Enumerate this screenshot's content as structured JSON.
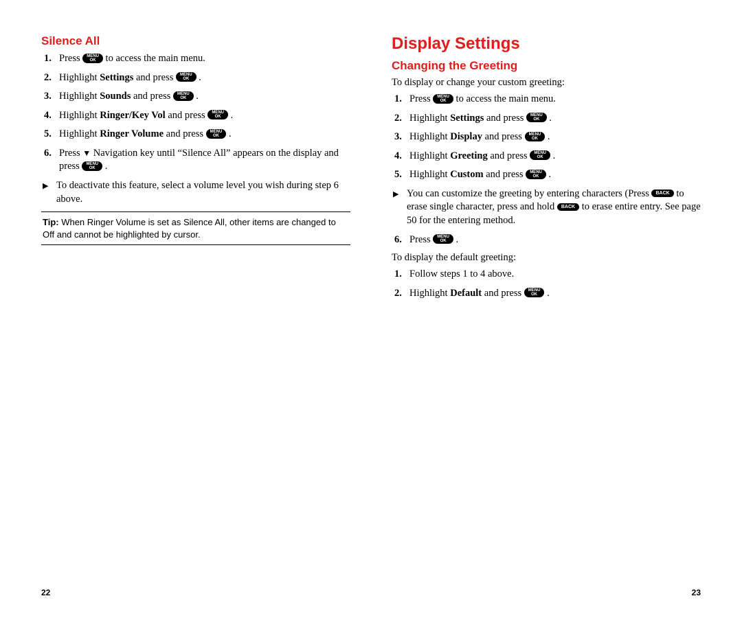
{
  "left": {
    "subsection_title": "Silence All",
    "steps": [
      {
        "pre": "Press ",
        "key": "menu",
        "post": " to access the main menu."
      },
      {
        "pre": "Highlight ",
        "bold": "Settings",
        "mid": " and press ",
        "key": "menu",
        "post": " ."
      },
      {
        "pre": "Highlight ",
        "bold": "Sounds",
        "mid": " and press ",
        "key": "menu",
        "post": " ."
      },
      {
        "pre": "Highlight ",
        "bold": "Ringer/Key Vol",
        "mid": " and press ",
        "key": "menu",
        "post": " ."
      },
      {
        "pre": "Highlight ",
        "bold": "Ringer Volume",
        "mid": " and press ",
        "key": "menu",
        "post": " ."
      },
      {
        "pre": "Press ",
        "nav": "▼",
        "mid": " Navigation key until “Silence All” appears on the display and press ",
        "key": "menu",
        "post": " ."
      }
    ],
    "note": "To deactivate this feature, select a volume level you wish during step 6 above.",
    "tip_label": "Tip:",
    "tip_text": " When Ringer Volume is set as Silence All, other items are changed to Off and cannot be highlighted by cursor.",
    "page_num": "22"
  },
  "right": {
    "section_title": "Display Settings",
    "subsection_title": "Changing the Greeting",
    "intro1": "To display or change your custom greeting:",
    "steps1": [
      {
        "pre": "Press ",
        "key": "menu",
        "post": " to access the main menu."
      },
      {
        "pre": "Highlight ",
        "bold": "Settings",
        "mid": " and press ",
        "key": "menu",
        "post": " ."
      },
      {
        "pre": "Highlight ",
        "bold": "Display",
        "mid": " and press ",
        "key": "menu",
        "post": " ."
      },
      {
        "pre": "Highlight ",
        "bold": "Greeting",
        "mid": " and press ",
        "key": "menu",
        "post": " ."
      },
      {
        "pre": "Highlight ",
        "bold": "Custom",
        "mid": " and press ",
        "key": "menu",
        "post": " ."
      }
    ],
    "note1_pre": "You can customize the greeting by entering characters (Press ",
    "note1_mid1": " to erase single character, press and hold ",
    "note1_mid2": " to erase entire entry. See page 50 for the entering method.",
    "step6_pre": "Press ",
    "step6_post": " .",
    "intro2": "To display the default greeting:",
    "steps2": [
      {
        "text": "Follow steps 1 to 4 above."
      },
      {
        "pre": "Highlight ",
        "bold": "Default",
        "mid": " and press ",
        "key": "menu",
        "post": " ."
      }
    ],
    "page_num": "23"
  },
  "keys": {
    "menu_line1": "MENU",
    "menu_line2": "OK",
    "back": "BACK"
  }
}
